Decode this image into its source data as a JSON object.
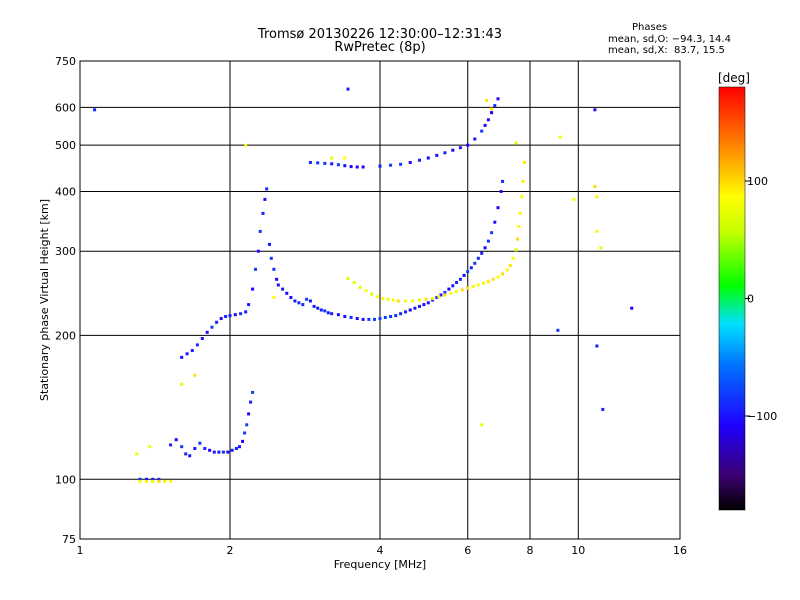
{
  "header": {
    "title": "Tromsø 20130226 12:30:00–12:31:43",
    "subtitle": "RwPretec (8p)",
    "stats_title": "Phases",
    "stats_o": "mean, sd,O: −94.3, 14.4",
    "stats_x": "mean, sd,X:  83.7, 15.5"
  },
  "colorbar": {
    "label": "[deg]",
    "ticks": [
      {
        "value": 100,
        "label": "100"
      },
      {
        "value": 0,
        "label": "0"
      },
      {
        "value": -100,
        "label": "−100"
      }
    ],
    "range": [
      -180,
      180
    ]
  },
  "chart_data": {
    "type": "scatter",
    "title": "Tromsø 20130226 12:30:00–12:31:43",
    "subtitle": "RwPretec (8p)",
    "xlabel": "Frequency [MHz]",
    "ylabel": "Stationary phase Virtual Height [km]",
    "x_scale": "log",
    "y_scale": "log",
    "xlim": [
      1,
      16
    ],
    "ylim": [
      75,
      750
    ],
    "x_ticks": [
      1,
      2,
      4,
      6,
      8,
      10,
      16
    ],
    "y_ticks": [
      75,
      100,
      200,
      300,
      400,
      500,
      600,
      750
    ],
    "grid": true,
    "color_variable": "Phase [deg]",
    "series": [
      {
        "name": "O",
        "phase_mean": -94.3,
        "phase_sd": 14.4,
        "points": [
          [
            1.07,
            593
          ],
          [
            1.32,
            100
          ],
          [
            1.36,
            100
          ],
          [
            1.4,
            100
          ],
          [
            1.44,
            100
          ],
          [
            1.52,
            118
          ],
          [
            1.56,
            121
          ],
          [
            1.6,
            117
          ],
          [
            1.63,
            113
          ],
          [
            1.66,
            112
          ],
          [
            1.7,
            116
          ],
          [
            1.74,
            119
          ],
          [
            1.78,
            116
          ],
          [
            1.82,
            115
          ],
          [
            1.86,
            114
          ],
          [
            1.9,
            114
          ],
          [
            1.94,
            114
          ],
          [
            1.98,
            114
          ],
          [
            2.02,
            115
          ],
          [
            2.06,
            116
          ],
          [
            2.09,
            117
          ],
          [
            2.12,
            120
          ],
          [
            2.14,
            125
          ],
          [
            2.16,
            130
          ],
          [
            2.18,
            137
          ],
          [
            2.2,
            145
          ],
          [
            2.22,
            152
          ],
          [
            1.6,
            180
          ],
          [
            1.64,
            183
          ],
          [
            1.68,
            186
          ],
          [
            1.72,
            191
          ],
          [
            1.76,
            197
          ],
          [
            1.8,
            203
          ],
          [
            1.84,
            208
          ],
          [
            1.88,
            213
          ],
          [
            1.92,
            217
          ],
          [
            1.96,
            219
          ],
          [
            2.0,
            220
          ],
          [
            2.05,
            221
          ],
          [
            2.1,
            222
          ],
          [
            2.15,
            224
          ],
          [
            2.18,
            232
          ],
          [
            2.22,
            250
          ],
          [
            2.25,
            275
          ],
          [
            2.28,
            300
          ],
          [
            2.3,
            330
          ],
          [
            2.33,
            360
          ],
          [
            2.35,
            385
          ],
          [
            2.37,
            405
          ],
          [
            2.4,
            310
          ],
          [
            2.42,
            290
          ],
          [
            2.45,
            275
          ],
          [
            2.48,
            262
          ],
          [
            2.5,
            255
          ],
          [
            2.55,
            250
          ],
          [
            2.6,
            245
          ],
          [
            2.65,
            240
          ],
          [
            2.7,
            236
          ],
          [
            2.75,
            234
          ],
          [
            2.8,
            232
          ],
          [
            2.85,
            238
          ],
          [
            2.9,
            236
          ],
          [
            2.95,
            230
          ],
          [
            3.0,
            228
          ],
          [
            3.05,
            226
          ],
          [
            3.1,
            225
          ],
          [
            3.15,
            223
          ],
          [
            3.2,
            222
          ],
          [
            3.3,
            221
          ],
          [
            3.4,
            219
          ],
          [
            3.5,
            218
          ],
          [
            3.6,
            217
          ],
          [
            3.7,
            216
          ],
          [
            3.8,
            216
          ],
          [
            3.9,
            216
          ],
          [
            4.0,
            217
          ],
          [
            4.1,
            218
          ],
          [
            4.2,
            219
          ],
          [
            4.3,
            220
          ],
          [
            4.4,
            222
          ],
          [
            4.5,
            224
          ],
          [
            4.6,
            226
          ],
          [
            4.7,
            228
          ],
          [
            4.8,
            230
          ],
          [
            4.9,
            232
          ],
          [
            5.0,
            234
          ],
          [
            5.1,
            237
          ],
          [
            5.2,
            240
          ],
          [
            5.3,
            243
          ],
          [
            5.4,
            246
          ],
          [
            5.5,
            250
          ],
          [
            5.6,
            254
          ],
          [
            5.7,
            258
          ],
          [
            5.8,
            262
          ],
          [
            5.9,
            267
          ],
          [
            6.0,
            272
          ],
          [
            6.1,
            277
          ],
          [
            6.2,
            283
          ],
          [
            6.3,
            290
          ],
          [
            6.4,
            297
          ],
          [
            6.5,
            305
          ],
          [
            6.6,
            315
          ],
          [
            6.7,
            328
          ],
          [
            6.8,
            345
          ],
          [
            6.9,
            370
          ],
          [
            7.0,
            400
          ],
          [
            7.05,
            420
          ],
          [
            2.9,
            460
          ],
          [
            3.0,
            459
          ],
          [
            3.1,
            458
          ],
          [
            3.2,
            457
          ],
          [
            3.3,
            455
          ],
          [
            3.4,
            453
          ],
          [
            3.5,
            451
          ],
          [
            3.6,
            450
          ],
          [
            3.7,
            450
          ],
          [
            4.0,
            452
          ],
          [
            4.2,
            454
          ],
          [
            4.4,
            456
          ],
          [
            4.6,
            460
          ],
          [
            4.8,
            465
          ],
          [
            5.0,
            470
          ],
          [
            5.2,
            476
          ],
          [
            5.4,
            482
          ],
          [
            5.6,
            488
          ],
          [
            5.8,
            494
          ],
          [
            6.0,
            500
          ],
          [
            6.2,
            515
          ],
          [
            6.4,
            535
          ],
          [
            6.5,
            550
          ],
          [
            6.6,
            565
          ],
          [
            6.7,
            585
          ],
          [
            6.8,
            605
          ],
          [
            6.9,
            625
          ],
          [
            3.45,
            655
          ],
          [
            10.8,
            593
          ],
          [
            10.9,
            190
          ],
          [
            11.2,
            140
          ],
          [
            12.8,
            228
          ],
          [
            9.1,
            205
          ]
        ]
      },
      {
        "name": "X",
        "phase_mean": 83.7,
        "phase_sd": 15.5,
        "points": [
          [
            1.32,
            99
          ],
          [
            1.36,
            99
          ],
          [
            1.4,
            99
          ],
          [
            1.44,
            99
          ],
          [
            1.48,
            99
          ],
          [
            1.52,
            99
          ],
          [
            1.3,
            113
          ],
          [
            1.38,
            117
          ],
          [
            1.6,
            158
          ],
          [
            1.7,
            165
          ],
          [
            3.45,
            263
          ],
          [
            3.55,
            258
          ],
          [
            3.65,
            252
          ],
          [
            3.75,
            248
          ],
          [
            3.85,
            244
          ],
          [
            3.95,
            241
          ],
          [
            4.05,
            239
          ],
          [
            4.15,
            238
          ],
          [
            4.25,
            237
          ],
          [
            4.35,
            236
          ],
          [
            4.5,
            236
          ],
          [
            4.65,
            236
          ],
          [
            4.8,
            237
          ],
          [
            4.95,
            238
          ],
          [
            5.1,
            239
          ],
          [
            5.25,
            241
          ],
          [
            5.4,
            243
          ],
          [
            5.55,
            245
          ],
          [
            5.7,
            247
          ],
          [
            5.85,
            249
          ],
          [
            6.0,
            251
          ],
          [
            6.15,
            253
          ],
          [
            6.3,
            255
          ],
          [
            6.45,
            257
          ],
          [
            6.6,
            259
          ],
          [
            6.75,
            262
          ],
          [
            6.9,
            265
          ],
          [
            7.05,
            269
          ],
          [
            7.2,
            274
          ],
          [
            7.3,
            280
          ],
          [
            7.4,
            290
          ],
          [
            7.5,
            302
          ],
          [
            7.55,
            318
          ],
          [
            7.6,
            338
          ],
          [
            7.65,
            360
          ],
          [
            7.7,
            390
          ],
          [
            7.75,
            420
          ],
          [
            7.8,
            460
          ],
          [
            2.15,
            500
          ],
          [
            2.45,
            240
          ],
          [
            6.55,
            620
          ],
          [
            6.7,
            595
          ],
          [
            7.5,
            505
          ],
          [
            9.2,
            520
          ],
          [
            9.8,
            385
          ],
          [
            10.8,
            410
          ],
          [
            10.9,
            330
          ],
          [
            11.1,
            305
          ],
          [
            10.9,
            390
          ],
          [
            6.4,
            130
          ],
          [
            3.2,
            470
          ],
          [
            3.4,
            470
          ]
        ]
      }
    ]
  }
}
